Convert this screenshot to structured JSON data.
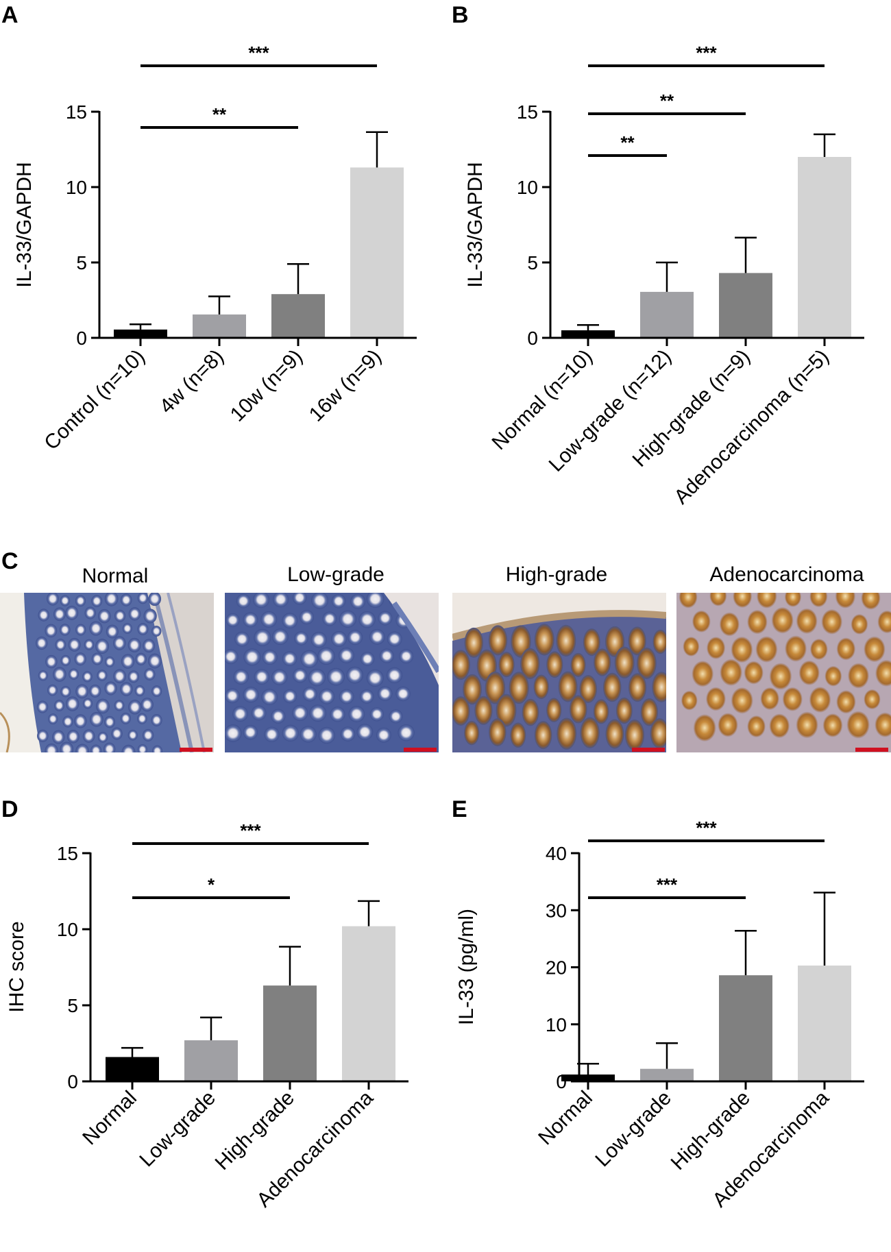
{
  "panels": {
    "a": "A",
    "b": "B",
    "c": "C",
    "d": "D",
    "e": "E"
  },
  "chart_data": [
    {
      "id": "A",
      "type": "bar",
      "title": "",
      "xlabel": "",
      "ylabel": "IL-33/GAPDH",
      "ylim": [
        0,
        15
      ],
      "yticks": [
        0,
        5,
        10,
        15
      ],
      "grid": false,
      "categories": [
        "Control (n=10)",
        "4w (n=8)",
        "10w (n=9)",
        "16w (n=9)"
      ],
      "values": [
        0.55,
        1.55,
        2.9,
        11.3
      ],
      "errors": [
        0.35,
        1.2,
        2.0,
        2.35
      ],
      "colors": [
        "#000000",
        "#a0a0a4",
        "#808080",
        "#d3d3d3"
      ],
      "significance": [
        {
          "from": 0,
          "to": 2,
          "label": "**"
        },
        {
          "from": 0,
          "to": 3,
          "label": "***"
        }
      ]
    },
    {
      "id": "B",
      "type": "bar",
      "title": "",
      "xlabel": "",
      "ylabel": "IL-33/GAPDH",
      "ylim": [
        0,
        15
      ],
      "yticks": [
        0,
        5,
        10,
        15
      ],
      "grid": false,
      "categories": [
        "Normal (n=10)",
        "Low-grade (n=12)",
        "High-grade (n=9)",
        "Adenocarcinoma (n=5)"
      ],
      "values": [
        0.5,
        3.05,
        4.3,
        12.0
      ],
      "errors": [
        0.35,
        1.95,
        2.35,
        1.5
      ],
      "colors": [
        "#000000",
        "#a0a0a4",
        "#808080",
        "#d3d3d3"
      ],
      "significance": [
        {
          "from": 0,
          "to": 1,
          "label": "**"
        },
        {
          "from": 0,
          "to": 2,
          "label": "**"
        },
        {
          "from": 0,
          "to": 3,
          "label": "***"
        }
      ]
    },
    {
      "id": "D",
      "type": "bar",
      "title": "",
      "xlabel": "",
      "ylabel": "IHC score",
      "ylim": [
        0,
        15
      ],
      "yticks": [
        0,
        5,
        10,
        15
      ],
      "grid": false,
      "categories": [
        "Normal",
        "Low-grade",
        "High-grade",
        "Adenocarcinoma"
      ],
      "values": [
        1.6,
        2.7,
        6.3,
        10.2
      ],
      "errors": [
        0.6,
        1.5,
        2.55,
        1.65
      ],
      "colors": [
        "#000000",
        "#a0a0a4",
        "#808080",
        "#d3d3d3"
      ],
      "significance": [
        {
          "from": 0,
          "to": 2,
          "label": "*"
        },
        {
          "from": 0,
          "to": 3,
          "label": "***"
        }
      ]
    },
    {
      "id": "E",
      "type": "bar",
      "title": "",
      "xlabel": "",
      "ylabel": "IL-33 (pg/ml)",
      "ylim": [
        0,
        40
      ],
      "yticks": [
        0,
        10,
        20,
        30,
        40
      ],
      "grid": false,
      "categories": [
        "Normal",
        "Low-grade",
        "High-grade",
        "Adenocarcinoma"
      ],
      "values": [
        1.2,
        2.2,
        18.6,
        20.3
      ],
      "errors": [
        1.9,
        4.5,
        7.8,
        12.8
      ],
      "colors": [
        "#000000",
        "#a0a0a4",
        "#808080",
        "#d3d3d3"
      ],
      "significance": [
        {
          "from": 0,
          "to": 2,
          "label": "***"
        },
        {
          "from": 0,
          "to": 3,
          "label": "***"
        }
      ]
    }
  ],
  "micrographs": {
    "titles": [
      "Normal",
      "Low-grade",
      "High-grade",
      "Adenocarcinoma"
    ],
    "scale_bar_color": "#d01020"
  }
}
